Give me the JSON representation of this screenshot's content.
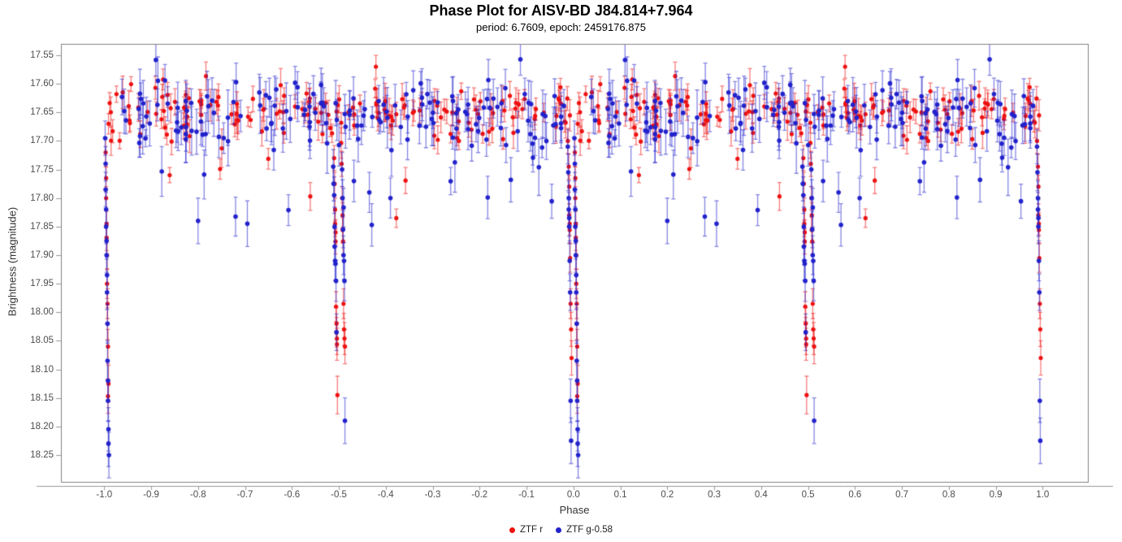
{
  "chart_data": {
    "type": "scatter",
    "title": "Phase Plot for AISV-BD J84.814+7.964",
    "subtitle": "period: 6.7609, epoch: 2459176.875",
    "xlabel": "Phase",
    "ylabel": "Brightness (magnitude)",
    "xlim": [
      -1.0923,
      1.0964
    ],
    "ylim": [
      18.297,
      17.53
    ],
    "y_axis_inverted": true,
    "grid": false,
    "legend_position": "bottom",
    "background_color": "#ffffff",
    "axis_color": "#808080",
    "tick_color": "#999999",
    "tick_label_color": "#4d4d4d",
    "x_ticks": [
      {
        "v": -1.0,
        "label": "-1.0"
      },
      {
        "v": -0.9,
        "label": "-0.9"
      },
      {
        "v": -0.8,
        "label": "-0.8"
      },
      {
        "v": -0.7,
        "label": "-0.7"
      },
      {
        "v": -0.6,
        "label": "-0.6"
      },
      {
        "v": -0.5,
        "label": "-0.5"
      },
      {
        "v": -0.4,
        "label": "-0.4"
      },
      {
        "v": -0.3,
        "label": "-0.3"
      },
      {
        "v": -0.2,
        "label": "-0.2"
      },
      {
        "v": -0.1,
        "label": "-0.1"
      },
      {
        "v": 0.0,
        "label": "0.0"
      },
      {
        "v": 0.1,
        "label": "0.1"
      },
      {
        "v": 0.2,
        "label": "0.2"
      },
      {
        "v": 0.3,
        "label": "0.3"
      },
      {
        "v": 0.4,
        "label": "0.4"
      },
      {
        "v": 0.5,
        "label": "0.5"
      },
      {
        "v": 0.6,
        "label": "0.6"
      },
      {
        "v": 0.7,
        "label": "0.7"
      },
      {
        "v": 0.8,
        "label": "0.8"
      },
      {
        "v": 0.9,
        "label": "0.9"
      },
      {
        "v": 1.0,
        "label": "1.0"
      }
    ],
    "y_ticks": [
      {
        "v": 17.55,
        "label": "17.55"
      },
      {
        "v": 17.6,
        "label": "17.60"
      },
      {
        "v": 17.65,
        "label": "17.65"
      },
      {
        "v": 17.7,
        "label": "17.70"
      },
      {
        "v": 17.75,
        "label": "17.75"
      },
      {
        "v": 17.8,
        "label": "17.80"
      },
      {
        "v": 17.85,
        "label": "17.85"
      },
      {
        "v": 17.9,
        "label": "17.90"
      },
      {
        "v": 17.95,
        "label": "17.95"
      },
      {
        "v": 18.0,
        "label": "18.00"
      },
      {
        "v": 18.05,
        "label": "18.05"
      },
      {
        "v": 18.1,
        "label": "18.10"
      },
      {
        "v": 18.15,
        "label": "18.15"
      },
      {
        "v": 18.2,
        "label": "18.20"
      },
      {
        "v": 18.25,
        "label": "18.25"
      }
    ],
    "phase_duplication": "each point (phase p in [-0.5,0.5)) is also plotted at p-1 (p>=0) or p+1 (p<0), spanning [-1,1]",
    "eclipses": {
      "primary_phase": 0.0,
      "primary_depth_mag": 18.28,
      "secondary_phase": 0.5,
      "secondary_depth_mag": 18.19,
      "out_of_eclipse_mag": 17.655
    },
    "series": [
      {
        "name": "ZTF r",
        "color": "#ee1111",
        "errorbar_color": "rgba(238,17,17,0.55)",
        "marker_radius": 2.6,
        "band": {
          "count": 170,
          "phase_range": [
            -0.5,
            0.5
          ],
          "mag_mean": 17.652,
          "mag_sigma": 0.021,
          "mag_min": 17.585,
          "tail_fraction": 0.03,
          "tail_offset": 0.07,
          "tail_spread": 0.12,
          "err_mean": 0.021,
          "err_sigma": 0.005,
          "seed": 11
        },
        "points": [
          [
            -0.012,
            17.7,
            0.022
          ],
          [
            -0.01,
            17.745,
            0.022
          ],
          [
            -0.009,
            17.78,
            0.02
          ],
          [
            -0.009,
            17.83,
            0.02
          ],
          [
            -0.008,
            17.845,
            0.02
          ],
          [
            -0.008,
            17.856,
            0.022
          ],
          [
            -0.007,
            17.905,
            0.025
          ],
          [
            -0.006,
            17.985,
            0.026
          ],
          [
            -0.005,
            18.03,
            0.03
          ],
          [
            -0.004,
            18.08,
            0.03
          ],
          [
            0.003,
            17.72,
            0.025
          ],
          [
            0.004,
            17.765,
            0.02
          ],
          [
            0.004,
            17.8,
            0.02
          ],
          [
            0.005,
            17.845,
            0.022
          ],
          [
            0.005,
            17.87,
            0.022
          ],
          [
            0.006,
            17.9,
            0.025
          ],
          [
            0.006,
            17.95,
            0.026
          ],
          [
            0.007,
            17.985,
            0.026
          ],
          [
            0.007,
            18.02,
            0.028
          ],
          [
            0.008,
            18.06,
            0.03
          ],
          [
            0.009,
            18.125,
            0.032
          ],
          [
            0.008,
            18.147,
            0.03
          ],
          [
            0.49,
            17.73,
            0.022
          ],
          [
            0.491,
            17.775,
            0.02
          ],
          [
            0.492,
            17.82,
            0.02
          ],
          [
            0.492,
            17.845,
            0.022
          ],
          [
            0.493,
            17.86,
            0.022
          ],
          [
            0.493,
            17.876,
            0.022
          ],
          [
            0.494,
            17.99,
            0.026
          ],
          [
            0.495,
            18.02,
            0.028
          ],
          [
            0.495,
            18.035,
            0.026
          ],
          [
            0.496,
            18.046,
            0.028
          ],
          [
            0.496,
            18.056,
            0.028
          ],
          [
            0.497,
            18.145,
            0.033
          ],
          [
            -0.494,
            17.74,
            0.022
          ],
          [
            -0.493,
            17.8,
            0.02
          ],
          [
            -0.492,
            17.83,
            0.022
          ],
          [
            -0.492,
            17.856,
            0.022
          ],
          [
            -0.491,
            17.876,
            0.024
          ],
          [
            -0.49,
            17.985,
            0.026
          ],
          [
            -0.489,
            18.03,
            0.028
          ],
          [
            -0.488,
            18.046,
            0.028
          ],
          [
            -0.487,
            18.06,
            0.03
          ],
          [
            -0.421,
            17.57,
            0.02
          ]
        ]
      },
      {
        "name": "ZTF g-0.58",
        "color": "#2222cc",
        "errorbar_color": "rgba(34,34,204,0.55)",
        "marker_radius": 2.8,
        "band": {
          "count": 170,
          "phase_range": [
            -0.5,
            0.5
          ],
          "mag_mean": 17.658,
          "mag_sigma": 0.03,
          "mag_min": 17.556,
          "tail_fraction": 0.05,
          "tail_offset": 0.07,
          "tail_spread": 0.13,
          "err_mean": 0.034,
          "err_sigma": 0.009,
          "seed": 47
        },
        "points": [
          [
            -0.012,
            17.71,
            0.03
          ],
          [
            -0.011,
            17.755,
            0.032
          ],
          [
            -0.01,
            17.8,
            0.03
          ],
          [
            -0.01,
            17.82,
            0.03
          ],
          [
            -0.009,
            17.835,
            0.032
          ],
          [
            -0.009,
            17.85,
            0.03
          ],
          [
            -0.008,
            17.91,
            0.035
          ],
          [
            -0.007,
            17.965,
            0.032
          ],
          [
            -0.006,
            18.155,
            0.038
          ],
          [
            -0.005,
            18.225,
            0.04
          ],
          [
            0.002,
            17.695,
            0.03
          ],
          [
            0.003,
            17.74,
            0.03
          ],
          [
            0.003,
            17.785,
            0.03
          ],
          [
            0.004,
            17.82,
            0.03
          ],
          [
            0.004,
            17.85,
            0.03
          ],
          [
            0.005,
            17.875,
            0.032
          ],
          [
            0.005,
            17.9,
            0.03
          ],
          [
            0.006,
            17.935,
            0.032
          ],
          [
            0.006,
            17.965,
            0.03
          ],
          [
            0.007,
            18.02,
            0.034
          ],
          [
            0.007,
            18.085,
            0.035
          ],
          [
            0.008,
            18.12,
            0.035
          ],
          [
            0.008,
            18.155,
            0.036
          ],
          [
            0.009,
            18.205,
            0.038
          ],
          [
            0.009,
            18.23,
            0.04
          ],
          [
            0.01,
            18.25,
            0.04
          ],
          [
            0.488,
            17.745,
            0.03
          ],
          [
            0.489,
            17.775,
            0.03
          ],
          [
            0.49,
            17.795,
            0.032
          ],
          [
            0.491,
            17.85,
            0.034
          ],
          [
            0.491,
            17.885,
            0.032
          ],
          [
            0.492,
            17.91,
            0.034
          ],
          [
            0.493,
            17.915,
            0.03
          ],
          [
            0.494,
            17.945,
            0.036
          ],
          [
            0.495,
            18.035,
            0.032
          ],
          [
            -0.493,
            17.75,
            0.03
          ],
          [
            -0.492,
            17.8,
            0.032
          ],
          [
            -0.491,
            17.855,
            0.032
          ],
          [
            -0.49,
            17.9,
            0.034
          ],
          [
            -0.489,
            17.91,
            0.032
          ],
          [
            -0.488,
            17.945,
            0.035
          ],
          [
            -0.487,
            18.19,
            0.04
          ],
          [
            0.11,
            17.558,
            0.028
          ],
          [
            -0.113,
            17.557,
            0.028
          ],
          [
            -0.435,
            17.79,
            0.035
          ],
          [
            0.305,
            17.845,
            0.04
          ],
          [
            0.2,
            17.84,
            0.04
          ],
          [
            -0.39,
            17.8,
            0.035
          ]
        ]
      }
    ]
  }
}
